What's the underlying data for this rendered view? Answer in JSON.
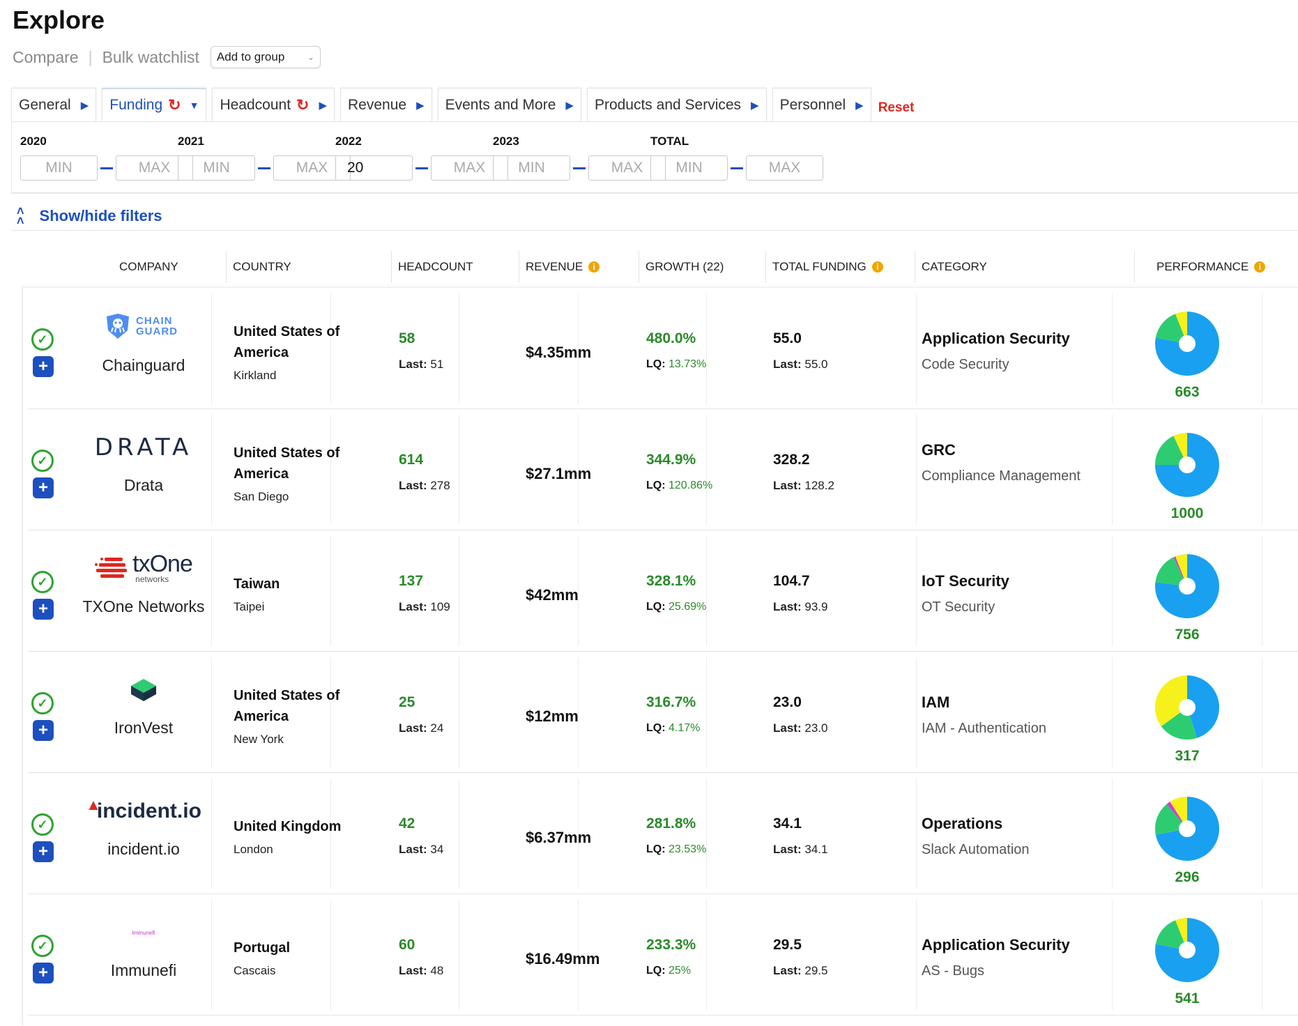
{
  "page": {
    "title": "Explore"
  },
  "subnav": {
    "compare": "Compare",
    "bulk_watchlist": "Bulk watchlist",
    "add_to_group": "Add to group"
  },
  "tabs": [
    {
      "label": "General",
      "active": false,
      "refresh": false,
      "icon": "triangle-right-icon"
    },
    {
      "label": "Funding",
      "active": true,
      "refresh": true,
      "icon": "caret-down-icon"
    },
    {
      "label": "Headcount",
      "active": false,
      "refresh": true,
      "icon": "triangle-right-icon"
    },
    {
      "label": "Revenue",
      "active": false,
      "refresh": false,
      "icon": "triangle-right-icon"
    },
    {
      "label": "Events and More",
      "active": false,
      "refresh": false,
      "icon": "triangle-right-icon"
    },
    {
      "label": "Products and Services",
      "active": false,
      "refresh": false,
      "icon": "triangle-right-icon"
    },
    {
      "label": "Personnel",
      "active": false,
      "refresh": false,
      "icon": "triangle-right-icon"
    }
  ],
  "reset_label": "Reset",
  "filters": [
    {
      "label": "2020",
      "min": "",
      "max": ""
    },
    {
      "label": "2021",
      "min": "",
      "max": ""
    },
    {
      "label": "2022",
      "min": "20",
      "max": ""
    },
    {
      "label": "2023",
      "min": "",
      "max": ""
    },
    {
      "label": "TOTAL",
      "min": "",
      "max": ""
    }
  ],
  "filter_placeholders": {
    "min": "MIN",
    "max": "MAX"
  },
  "show_hide": "Show/hide filters",
  "columns": {
    "company": "COMPANY",
    "country": "COUNTRY",
    "headcount": "HEADCOUNT",
    "revenue": "REVENUE",
    "growth": "GROWTH (22)",
    "total_funding": "TOTAL FUNDING",
    "category": "CATEGORY",
    "performance": "PERFORMANCE"
  },
  "colors": {
    "accent": "#1d4fbf",
    "green": "#2a8a2a",
    "red": "#e0271f",
    "pie_blue": "#1aa0f0",
    "pie_green": "#2ecc71",
    "pie_yellow": "#f6f11a",
    "pie_pink": "#d63ad6"
  },
  "rows": [
    {
      "company": "Chainguard",
      "logo_text": "CHAIN GUARD",
      "country": "United States of America",
      "city": "Kirkland",
      "headcount": "58",
      "last_label": "Last:",
      "headcount_last": "51",
      "revenue": "$4.35mm",
      "growth": "480.0%",
      "lq_label": "LQ:",
      "lq": "13.73%",
      "total_funding": "55.0",
      "funding_last": "55.0",
      "category": "Application Security",
      "subcategory": "Code Security",
      "performance": "663",
      "pie": {
        "blue": 0.78,
        "green": 0.16,
        "pink": 0.0,
        "yellow": 0.06
      }
    },
    {
      "company": "Drata",
      "logo_text": "DRATA",
      "country": "United States of America",
      "city": "San Diego",
      "headcount": "614",
      "last_label": "Last:",
      "headcount_last": "278",
      "revenue": "$27.1mm",
      "growth": "344.9%",
      "lq_label": "LQ:",
      "lq": "120.86%",
      "total_funding": "328.2",
      "funding_last": "128.2",
      "category": "GRC",
      "subcategory": "Compliance Management",
      "performance": "1000",
      "pie": {
        "blue": 0.75,
        "green": 0.18,
        "pink": 0.0,
        "yellow": 0.07
      }
    },
    {
      "company": "TXOne Networks",
      "logo_text": "txOne",
      "logo_sub": "networks",
      "country": "Taiwan",
      "city": "Taipei",
      "headcount": "137",
      "last_label": "Last:",
      "headcount_last": "109",
      "revenue": "$42mm",
      "growth": "328.1%",
      "lq_label": "LQ:",
      "lq": "25.69%",
      "total_funding": "104.7",
      "funding_last": "93.9",
      "category": "IoT Security",
      "subcategory": "OT Security",
      "performance": "756",
      "pie": {
        "blue": 0.77,
        "green": 0.16,
        "pink": 0.01,
        "yellow": 0.06
      }
    },
    {
      "company": "IronVest",
      "logo_text": "",
      "country": "United States of America",
      "city": "New York",
      "headcount": "25",
      "last_label": "Last:",
      "headcount_last": "24",
      "revenue": "$12mm",
      "growth": "316.7%",
      "lq_label": "LQ:",
      "lq": "4.17%",
      "total_funding": "23.0",
      "funding_last": "23.0",
      "category": "IAM",
      "subcategory": "IAM - Authentication",
      "performance": "317",
      "pie": {
        "blue": 0.45,
        "green": 0.2,
        "pink": 0.0,
        "yellow": 0.35
      }
    },
    {
      "company": "incident.io",
      "logo_text": "incident.io",
      "country": "United Kingdom",
      "city": "London",
      "headcount": "42",
      "last_label": "Last:",
      "headcount_last": "34",
      "revenue": "$6.37mm",
      "growth": "281.8%",
      "lq_label": "LQ:",
      "lq": "23.53%",
      "total_funding": "34.1",
      "funding_last": "34.1",
      "category": "Operations",
      "subcategory": "Slack Automation",
      "performance": "296",
      "pie": {
        "blue": 0.72,
        "green": 0.17,
        "pink": 0.02,
        "yellow": 0.09
      }
    },
    {
      "company": "Immunefi",
      "logo_text": "Immunefi",
      "country": "Portugal",
      "city": "Cascais",
      "headcount": "60",
      "last_label": "Last:",
      "headcount_last": "48",
      "revenue": "$16.49mm",
      "growth": "233.3%",
      "lq_label": "LQ:",
      "lq": "25%",
      "total_funding": "29.5",
      "funding_last": "29.5",
      "category": "Application Security",
      "subcategory": "AS - Bugs",
      "performance": "541",
      "pie": {
        "blue": 0.78,
        "green": 0.16,
        "pink": 0.0,
        "yellow": 0.06
      }
    }
  ]
}
